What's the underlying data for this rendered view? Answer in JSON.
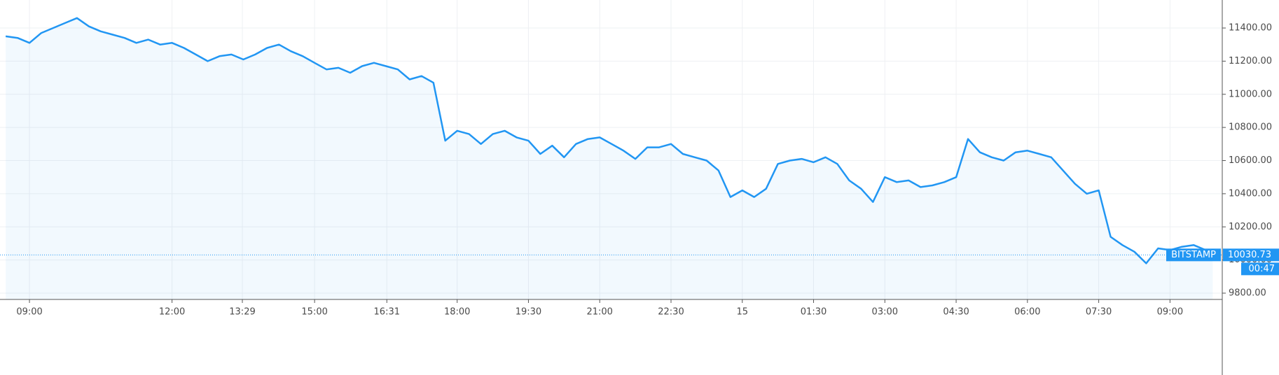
{
  "chart_data": {
    "type": "area",
    "exchange": "BITSTAMP",
    "last_value": 10030.73,
    "countdown": "00:47",
    "color": "#2196f3",
    "grid": true,
    "xlim": [
      -0.62,
      25.1
    ],
    "ylim": [
      9762,
      11569
    ],
    "xticks": [
      {
        "value": 0,
        "label": "09:00"
      },
      {
        "value": 3,
        "label": "12:00"
      },
      {
        "value": 4.48,
        "label": "13:29"
      },
      {
        "value": 6,
        "label": "15:00"
      },
      {
        "value": 7.52,
        "label": "16:31"
      },
      {
        "value": 9,
        "label": "18:00"
      },
      {
        "value": 10.5,
        "label": "19:30"
      },
      {
        "value": 12,
        "label": "21:00"
      },
      {
        "value": 13.5,
        "label": "22:30"
      },
      {
        "value": 15,
        "label": "15"
      },
      {
        "value": 16.5,
        "label": "01:30"
      },
      {
        "value": 18,
        "label": "03:00"
      },
      {
        "value": 19.5,
        "label": "04:30"
      },
      {
        "value": 21,
        "label": "06:00"
      },
      {
        "value": 22.5,
        "label": "07:30"
      },
      {
        "value": 24,
        "label": "09:00"
      }
    ],
    "yticks": [
      {
        "value": 9800,
        "label": "9800.00"
      },
      {
        "value": 10000,
        "label": "10000.00"
      },
      {
        "value": 10200,
        "label": "10200.00"
      },
      {
        "value": 10400,
        "label": "10400.00"
      },
      {
        "value": 10600,
        "label": "10600.00"
      },
      {
        "value": 10800,
        "label": "10800.00"
      },
      {
        "value": 11000,
        "label": "11000.00"
      },
      {
        "value": 11200,
        "label": "11200.00"
      },
      {
        "value": 11400,
        "label": "11400.00"
      }
    ],
    "x": [
      -0.5,
      -0.25,
      0,
      0.25,
      0.5,
      0.75,
      1,
      1.25,
      1.5,
      1.75,
      2,
      2.25,
      2.5,
      2.75,
      3,
      3.25,
      3.5,
      3.75,
      4,
      4.25,
      4.5,
      4.75,
      5,
      5.25,
      5.5,
      5.75,
      6,
      6.25,
      6.5,
      6.75,
      7,
      7.25,
      7.5,
      7.75,
      8,
      8.25,
      8.5,
      8.75,
      9,
      9.25,
      9.5,
      9.75,
      10,
      10.25,
      10.5,
      10.75,
      11,
      11.25,
      11.5,
      11.75,
      12,
      12.25,
      12.5,
      12.75,
      13,
      13.25,
      13.5,
      13.75,
      14,
      14.25,
      14.5,
      14.75,
      15,
      15.25,
      15.5,
      15.75,
      16,
      16.25,
      16.5,
      16.75,
      17,
      17.25,
      17.5,
      17.75,
      18,
      18.25,
      18.5,
      18.75,
      19,
      19.25,
      19.5,
      19.75,
      20,
      20.25,
      20.5,
      20.75,
      21,
      21.25,
      21.5,
      21.75,
      22,
      22.25,
      22.5,
      22.75,
      23,
      23.25,
      23.5,
      23.75,
      24,
      24.25,
      24.5,
      24.75,
      24.9
    ],
    "values": [
      11350,
      11340,
      11310,
      11370,
      11400,
      11430,
      11460,
      11410,
      11380,
      11360,
      11340,
      11310,
      11330,
      11300,
      11310,
      11280,
      11240,
      11200,
      11230,
      11240,
      11210,
      11240,
      11280,
      11300,
      11260,
      11230,
      11190,
      11150,
      11160,
      11130,
      11170,
      11190,
      11170,
      11150,
      11090,
      11110,
      11070,
      10720,
      10780,
      10760,
      10700,
      10760,
      10780,
      10740,
      10720,
      10640,
      10690,
      10620,
      10700,
      10730,
      10740,
      10700,
      10660,
      10610,
      10680,
      10680,
      10700,
      10640,
      10620,
      10600,
      10540,
      10380,
      10420,
      10380,
      10430,
      10580,
      10600,
      10610,
      10590,
      10620,
      10580,
      10480,
      10430,
      10350,
      10500,
      10470,
      10480,
      10440,
      10450,
      10470,
      10500,
      10730,
      10650,
      10620,
      10600,
      10650,
      10660,
      10640,
      10620,
      10540,
      10460,
      10400,
      10420,
      10140,
      10090,
      10050,
      9980,
      10070,
      10060,
      10080,
      10090,
      10060,
      10030.73
    ]
  }
}
